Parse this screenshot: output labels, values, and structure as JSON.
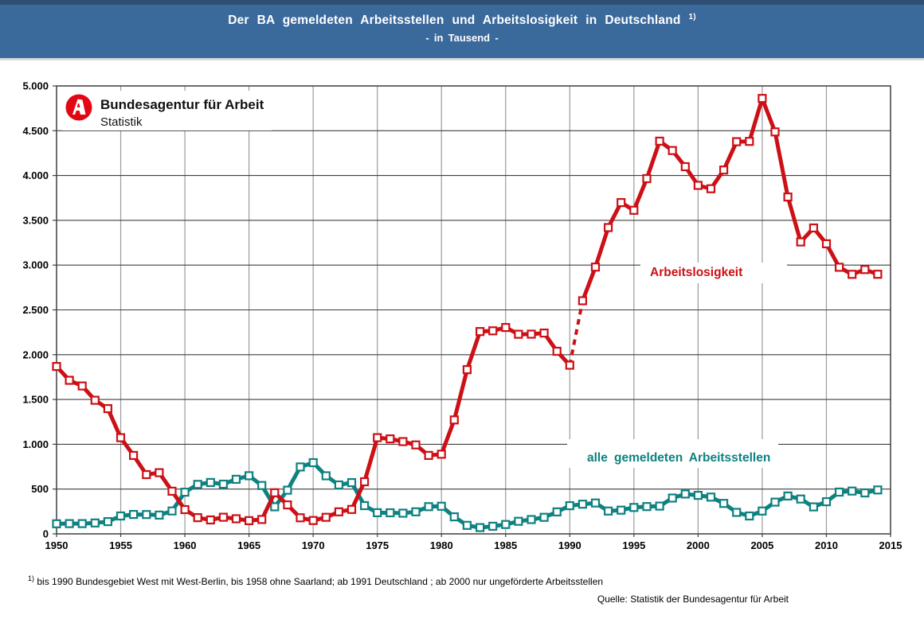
{
  "header": {
    "title": "Der BA gemeldeten Arbeitsstellen und Arbeitslosigkeit in Deutschland",
    "title_sup": "1)",
    "subtitle": "- in Tausend -",
    "bg_color": "#3A699C"
  },
  "logo": {
    "org": "Bundesagentur für Arbeit",
    "sub": "Statistik",
    "color": "#E30613"
  },
  "chart_data": {
    "type": "line",
    "title": "Der BA gemeldeten Arbeitsstellen und Arbeitslosigkeit in Deutschland - in Tausend -",
    "xlabel": "",
    "ylabel": "",
    "xlim": [
      1950,
      2015
    ],
    "ylim": [
      0,
      5000
    ],
    "grid": "on",
    "grid_h_color": "#3F3F3F",
    "grid_v_color": "#9B9B9B",
    "axis_color": "#3F3F3F",
    "xticks": [
      1950,
      1955,
      1960,
      1965,
      1970,
      1975,
      1980,
      1985,
      1990,
      1995,
      2000,
      2005,
      2010,
      2015
    ],
    "ytick_values": [
      0,
      500,
      1000,
      1500,
      2000,
      2500,
      3000,
      3500,
      4000,
      4500,
      5000
    ],
    "ytick_labels": [
      "0",
      "500",
      "1.000",
      "1.500",
      "2.000",
      "2.500",
      "3.000",
      "3.500",
      "4.000",
      "4.500",
      "5.000"
    ],
    "x": [
      1950,
      1951,
      1952,
      1953,
      1954,
      1955,
      1956,
      1957,
      1958,
      1959,
      1960,
      1961,
      1962,
      1963,
      1964,
      1965,
      1966,
      1967,
      1968,
      1969,
      1970,
      1971,
      1972,
      1973,
      1974,
      1975,
      1976,
      1977,
      1978,
      1979,
      1980,
      1981,
      1982,
      1983,
      1984,
      1985,
      1986,
      1987,
      1988,
      1989,
      1990,
      1991,
      1992,
      1993,
      1994,
      1995,
      1996,
      1997,
      1998,
      1999,
      2000,
      2001,
      2002,
      2003,
      2004,
      2005,
      2006,
      2007,
      2008,
      2009,
      2010,
      2011,
      2012,
      2013,
      2014
    ],
    "series": [
      {
        "name": "Arbeitslosigkeit",
        "color": "#CC1016",
        "dash_segment": [
          1990,
          1991
        ],
        "values": [
          1869,
          1714,
          1651,
          1491,
          1398,
          1074,
          876,
          662,
          683,
          476,
          271,
          181,
          155,
          186,
          169,
          147,
          161,
          459,
          323,
          179,
          149,
          185,
          246,
          273,
          582,
          1074,
          1060,
          1030,
          993,
          876,
          889,
          1272,
          1833,
          2258,
          2266,
          2304,
          2228,
          2229,
          2242,
          2038,
          1883,
          2602,
          2978,
          3419,
          3698,
          3612,
          3965,
          4384,
          4279,
          4099,
          3890,
          3853,
          4061,
          4377,
          4381,
          4861,
          4487,
          3760,
          3258,
          3415,
          3238,
          2976,
          2897,
          2950,
          2898
        ]
      },
      {
        "name": "alle gemeldeten Arbeitsstellen",
        "color": "#0E8180",
        "values": [
          113,
          115,
          115,
          122,
          137,
          200,
          217,
          216,
          210,
          256,
          465,
          552,
          574,
          555,
          609,
          649,
          540,
          302,
          488,
          747,
          795,
          648,
          546,
          572,
          315,
          236,
          235,
          231,
          246,
          304,
          308,
          190,
          95,
          70,
          85,
          105,
          140,
          160,
          185,
          245,
          314,
          331,
          345,
          255,
          265,
          295,
          305,
          310,
          400,
          445,
          430,
          410,
          340,
          240,
          200,
          255,
          354,
          423,
          389,
          301,
          359,
          466,
          478,
          457,
          490
        ]
      }
    ],
    "legend_position": "inline-labels"
  },
  "footnote": {
    "marker": "1)",
    "text": "bis 1990 Bundesgebiet West mit West-Berlin, bis 1958 ohne Saarland; ab 1991 Deutschland ; ab 2000 nur ungeförderte Arbeitsstellen"
  },
  "source": {
    "text": "Quelle: Statistik der Bundesagentur für Arbeit"
  }
}
